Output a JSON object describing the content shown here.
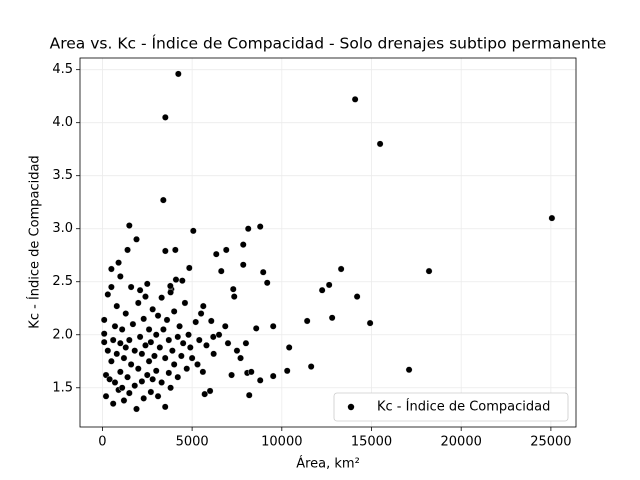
{
  "chart_data": {
    "type": "scatter",
    "title": "Area vs. Kc - Índice de Compacidad - Solo drenajes subtipo permanente",
    "x_label": "Área, km²",
    "y_label": "Kc - Índice de Compacidad",
    "xlim": [
      -1250,
      26400
    ],
    "ylim": [
      1.13,
      4.61
    ],
    "xticks": [
      0,
      5000,
      10000,
      15000,
      20000,
      25000
    ],
    "yticks": [
      1.5,
      {
        "value": 2,
        "label": "2.0"
      },
      2.5,
      {
        "value": 3,
        "label": "3.0"
      },
      3.5,
      {
        "value": 4,
        "label": "4.0"
      },
      4.5
    ],
    "grid": true,
    "legend": "lower right",
    "series": [
      {
        "name": "Kc - Índice de Compacidad",
        "color": "#000000",
        "x": [
          4232,
          3508,
          14087,
          15479,
          25056,
          3396,
          18207,
          17094,
          14922,
          13307,
          14198,
          12640,
          12249,
          12806,
          11414,
          11637,
          10412,
          10301,
          8797,
          8964,
          9187,
          8574,
          9521,
          9521,
          8797,
          8129,
          7851,
          7851,
          8185,
          8074,
          6904,
          6347,
          6626,
          7294,
          7349,
          6849,
          6180,
          6069,
          5624,
          5067,
          4844,
          4454,
          3842,
          3508,
          4065,
          3786,
          100,
          100,
          100,
          200,
          200,
          300,
          300,
          400,
          500,
          500,
          500,
          600,
          600,
          700,
          700,
          800,
          800,
          900,
          900,
          1000,
          1000,
          1000,
          1100,
          1100,
          1200,
          1200,
          1300,
          1300,
          1400,
          1400,
          1500,
          1500,
          1500,
          1600,
          1600,
          1700,
          1800,
          1800,
          1900,
          1900,
          2000,
          2000,
          2100,
          2100,
          2200,
          2200,
          2300,
          2300,
          2400,
          2400,
          2500,
          2500,
          2600,
          2600,
          2700,
          2700,
          2800,
          2800,
          2900,
          3000,
          3000,
          3100,
          3100,
          3200,
          3300,
          3300,
          3400,
          3500,
          3500,
          3600,
          3700,
          3700,
          3800,
          3800,
          3900,
          4000,
          4000,
          4100,
          4200,
          4200,
          4300,
          4400,
          4500,
          4600,
          4700,
          4800,
          4900,
          5000,
          5200,
          5300,
          5400,
          5500,
          5600,
          5700,
          5800,
          6000,
          6200,
          6500,
          7000,
          7200,
          7500,
          7700,
          8000,
          8300
        ],
        "values": [
          4.46,
          4.05,
          4.22,
          3.8,
          3.1,
          3.27,
          2.6,
          1.67,
          2.11,
          2.62,
          2.36,
          2.47,
          2.42,
          2.16,
          2.13,
          1.7,
          1.88,
          1.66,
          3.02,
          2.59,
          2.49,
          2.06,
          2.08,
          1.61,
          1.57,
          3.0,
          2.85,
          2.66,
          1.43,
          1.64,
          2.8,
          2.76,
          2.6,
          2.43,
          2.36,
          2.08,
          1.98,
          2.13,
          2.27,
          2.98,
          2.63,
          2.51,
          2.43,
          2.79,
          2.8,
          2.46,
          2.14,
          2.01,
          1.93,
          1.62,
          1.42,
          2.38,
          1.85,
          1.58,
          2.45,
          2.62,
          1.75,
          1.95,
          1.35,
          2.08,
          1.55,
          1.82,
          2.27,
          1.48,
          2.68,
          1.92,
          1.65,
          2.55,
          1.5,
          2.05,
          1.78,
          1.38,
          2.2,
          1.88,
          2.8,
          1.6,
          3.03,
          1.95,
          1.45,
          2.45,
          1.72,
          2.1,
          1.52,
          1.85,
          2.9,
          1.3,
          2.3,
          1.68,
          1.98,
          2.42,
          1.56,
          1.82,
          2.15,
          1.4,
          2.36,
          1.9,
          2.48,
          1.62,
          1.75,
          2.05,
          1.46,
          1.93,
          2.24,
          1.58,
          1.8,
          2.0,
          1.66,
          1.42,
          2.18,
          1.88,
          2.35,
          1.55,
          2.05,
          1.78,
          1.32,
          2.14,
          1.64,
          1.95,
          2.4,
          1.5,
          1.85,
          2.22,
          1.72,
          2.52,
          1.98,
          1.6,
          2.08,
          1.8,
          1.92,
          2.3,
          1.68,
          2.0,
          1.88,
          1.78,
          2.12,
          1.72,
          1.95,
          2.2,
          1.65,
          1.44,
          1.9,
          1.47,
          1.82,
          2.0,
          1.92,
          1.62,
          1.85,
          1.78,
          1.92,
          1.65
        ]
      }
    ]
  }
}
